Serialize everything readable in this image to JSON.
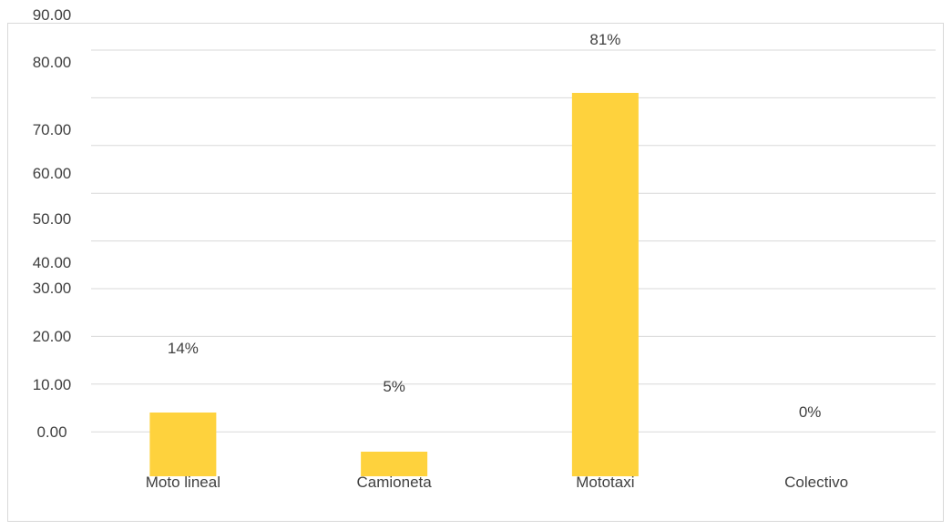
{
  "chart_data": {
    "type": "bar",
    "categories": [
      "Moto lineal",
      "Camioneta",
      "Mototaxi",
      "Colectivo"
    ],
    "values": [
      14,
      5,
      81,
      0
    ],
    "data_labels": [
      "14%",
      "5%",
      "81%",
      "0%"
    ],
    "y_tick_labels": [
      "90.00",
      "80.00",
      "70.00",
      "60.00",
      "50.00",
      "40.00",
      "30.00",
      "20.00",
      "10.00",
      "0.00"
    ],
    "ylim": [
      0,
      90
    ],
    "grid": true,
    "colors": {
      "bar": "#fed23d",
      "grid": "#d9d9d9",
      "text": "#404040"
    }
  }
}
